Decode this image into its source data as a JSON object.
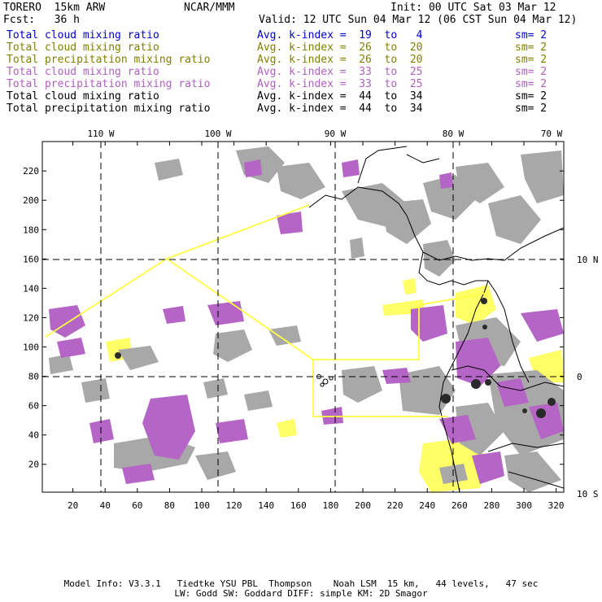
{
  "header": {
    "model": "TORERO  15km ARW",
    "center": "NCAR/MMM",
    "init": "Init: 00 UTC Sat 03 Mar 12",
    "fcst": "Fcst:   36 h",
    "valid": "Valid: 12 UTC Sun 04 Mar 12 (06 CST Sun 04 Mar 12)"
  },
  "legend": [
    {
      "name": "Total cloud mixing ratio",
      "index": "Avg. k-index =  19  to   4",
      "sm": "sm= 2",
      "color": "#0000cc"
    },
    {
      "name": "Total cloud mixing ratio",
      "index": "Avg. k-index =  26  to  20",
      "sm": "sm= 2",
      "color": "#808000"
    },
    {
      "name": "Total precipitation mixing ratio",
      "index": "Avg. k-index =  26  to  20",
      "sm": "sm= 2",
      "color": "#808000"
    },
    {
      "name": "Total cloud mixing ratio",
      "index": "Avg. k-index =  33  to  25",
      "sm": "sm= 2",
      "color": "#b060c0"
    },
    {
      "name": "Total precipitation mixing ratio",
      "index": "Avg. k-index =  33  to  25",
      "sm": "sm= 2",
      "color": "#b060c0"
    },
    {
      "name": "Total cloud mixing ratio",
      "index": "Avg. k-index =  44  to  34",
      "sm": "sm= 2",
      "color": "#000000"
    },
    {
      "name": "Total precipitation mixing ratio",
      "index": "Avg. k-index =  44  to  34",
      "sm": "sm= 2",
      "color": "#000000"
    }
  ],
  "map": {
    "lon_labels": [
      "110 W",
      "100 W",
      "90 W",
      "80 W",
      "70 W"
    ],
    "lat_labels": [
      "10 N",
      "0",
      "10 S"
    ],
    "y_ticks": [
      "220",
      "200",
      "180",
      "160",
      "140",
      "120",
      "100",
      "80",
      "60",
      "40",
      "20"
    ],
    "x_ticks": [
      "20",
      "40",
      "60",
      "80",
      "100",
      "120",
      "140",
      "160",
      "180",
      "200",
      "220",
      "240",
      "260",
      "280",
      "300",
      "320"
    ],
    "colors": {
      "cloud_gray": "#a8a8a8",
      "precip_purple": "#b565c6",
      "yellow": "#ffff66",
      "dark": "#2a2a2a",
      "outline": "#ffff44"
    }
  },
  "footer": {
    "line1": "Model Info: V3.3.1   Tiedtke YSU PBL  Thompson    Noah LSM  15 km,   44 levels,   47 sec",
    "line2": "LW: Godd SW: Goddard DIFF: simple KM: 2D Smagor"
  }
}
